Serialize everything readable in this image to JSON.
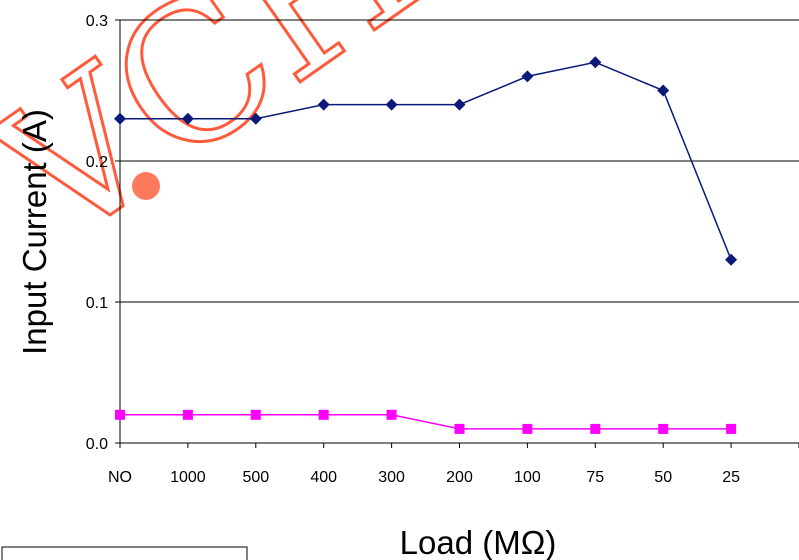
{
  "chart_data": {
    "type": "line",
    "categories": [
      "NO",
      "1000",
      "500",
      "400",
      "300",
      "200",
      "100",
      "75",
      "50",
      "25"
    ],
    "series": [
      {
        "color": "#0a1a7a",
        "marker": "diamond",
        "values": [
          0.23,
          0.23,
          0.23,
          0.24,
          0.24,
          0.24,
          0.26,
          0.27,
          0.25,
          0.13
        ]
      },
      {
        "color": "#ff00ff",
        "marker": "square",
        "values": [
          0.02,
          0.02,
          0.02,
          0.02,
          0.02,
          0.01,
          0.01,
          0.01,
          0.01,
          0.01
        ]
      }
    ],
    "xlabel": "Load (MΩ)",
    "ylabel": "Input Current (A)",
    "ylim": [
      0,
      0.3
    ],
    "yticks": [
      "0.0",
      "0.1",
      "0.2",
      "0.3"
    ],
    "grid": true,
    "legend": "none"
  },
  "watermark": {
    "text": "VCH"
  }
}
